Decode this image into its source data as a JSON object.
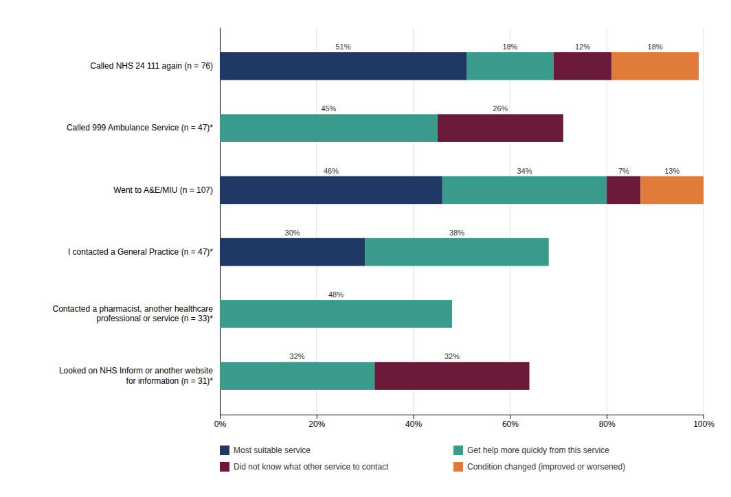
{
  "chart_data": {
    "type": "bar",
    "orientation": "horizontal",
    "stacked": true,
    "data_labels": true,
    "grid": true,
    "legend": "bottom",
    "categories": [
      "Called NHS 24 111 again (n = 76)",
      "Called 999 Ambulance Service (n = 47)*",
      "Went to A&E/MIU (n = 107)",
      "I contacted a General Practice (n = 47)*",
      "Contacted a pharmacist, another healthcare\nprofessional or service (n = 33)*",
      "Looked on NHS Inform or another website\nfor information (n = 31)*"
    ],
    "series": [
      {
        "name": "Most suitable service",
        "color": "#1f3864",
        "values": [
          51,
          0,
          46,
          30,
          0,
          0
        ],
        "value_labels": [
          "51%",
          null,
          "46%",
          "30%",
          null,
          null
        ]
      },
      {
        "name": "Get help more quickly from this service",
        "color": "#3a9a8c",
        "values": [
          18,
          45,
          34,
          38,
          48,
          32
        ],
        "value_labels": [
          "18%",
          "45%",
          "34%",
          "38%",
          "48%",
          "32%"
        ]
      },
      {
        "name": "Did not know what other service to contact",
        "color": "#6b1a3a",
        "values": [
          12,
          26,
          7,
          0,
          0,
          32
        ],
        "value_labels": [
          "12%",
          "26%",
          "7%",
          null,
          null,
          "32%"
        ]
      },
      {
        "name": "Condition changed (improved or worsened)",
        "color": "#e07b39",
        "values": [
          18,
          0,
          13,
          0,
          0,
          0
        ],
        "value_labels": [
          "18%",
          null,
          "13%",
          null,
          null,
          null
        ]
      }
    ],
    "xlim": [
      0,
      100
    ],
    "xticks": [
      {
        "value": 0,
        "label": "0%"
      },
      {
        "value": 20,
        "label": "20%"
      },
      {
        "value": 40,
        "label": "40%"
      },
      {
        "value": 60,
        "label": "60%"
      },
      {
        "value": 80,
        "label": "80%"
      },
      {
        "value": 100,
        "label": "100%"
      }
    ]
  }
}
